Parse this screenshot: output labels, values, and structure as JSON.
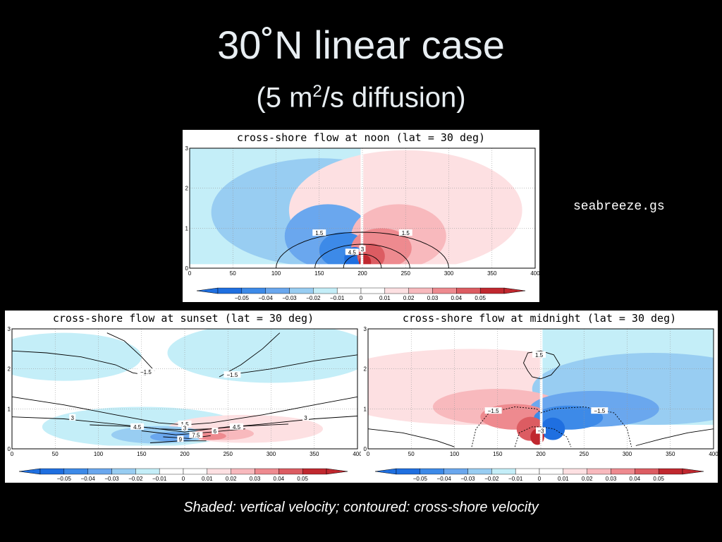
{
  "slide": {
    "title": "30˚N linear case",
    "subtitle_prefix": "(5 m",
    "subtitle_sup": "2",
    "subtitle_suffix": "/s diffusion)",
    "script_label": "seabreeze.gs",
    "caption": "Shaded: vertical velocity; contoured: cross-shore velocity"
  },
  "colors": {
    "neg5": "#1f6fe0",
    "neg4": "#3d8ae8",
    "neg3": "#6aa7ee",
    "neg2": "#98cdf2",
    "neg1": "#c4eef8",
    "zero": "#ffffff",
    "pos1": "#fde0e2",
    "pos2": "#f8b9bd",
    "pos3": "#ee8a8f",
    "pos4": "#dc5c62",
    "pos5": "#c0282f"
  },
  "chart_data": [
    {
      "type": "heatmap",
      "title": "cross-shore flow at noon (lat = 30 deg)",
      "x_ticks": [
        "0",
        "50",
        "100",
        "150",
        "200",
        "250",
        "300",
        "350",
        "400"
      ],
      "y_ticks": [
        "0",
        "1",
        "2",
        "3"
      ],
      "xlim": [
        0,
        400
      ],
      "ylim": [
        0,
        3
      ],
      "colorbar": [
        "−0.05",
        "−0.04",
        "−0.03",
        "−0.02",
        "−0.01",
        "0",
        "0.01",
        "0.02",
        "0.03",
        "0.04",
        "0.05"
      ],
      "contour_labels": [
        {
          "text": "1.5",
          "x": 150,
          "y": 0.88
        },
        {
          "text": "1.5",
          "x": 250,
          "y": 0.88
        },
        {
          "text": "3",
          "x": 200,
          "y": 0.48
        },
        {
          "text": "4.5",
          "x": 188,
          "y": 0.4
        }
      ]
    },
    {
      "type": "heatmap",
      "title": "cross-shore flow at sunset (lat = 30 deg)",
      "x_ticks": [
        "0",
        "50",
        "100",
        "150",
        "200",
        "250",
        "300",
        "350",
        "400"
      ],
      "y_ticks": [
        "0",
        "1",
        "2",
        "3"
      ],
      "xlim": [
        0,
        400
      ],
      "ylim": [
        0,
        3
      ],
      "colorbar": [
        "−0.05",
        "−0.04",
        "−0.03",
        "−0.02",
        "−0.01",
        "0",
        "0.01",
        "0.02",
        "0.03",
        "0.04",
        "0.05"
      ],
      "contour_labels": [
        {
          "text": "−1.5",
          "x": 155,
          "y": 1.92
        },
        {
          "text": "−1.5",
          "x": 255,
          "y": 1.85
        },
        {
          "text": "3",
          "x": 70,
          "y": 0.78
        },
        {
          "text": "3",
          "x": 340,
          "y": 0.78
        },
        {
          "text": "4.5",
          "x": 145,
          "y": 0.55
        },
        {
          "text": "4.5",
          "x": 260,
          "y": 0.55
        },
        {
          "text": "1.5",
          "x": 200,
          "y": 0.62
        },
        {
          "text": "3",
          "x": 200,
          "y": 0.52
        },
        {
          "text": "6",
          "x": 235,
          "y": 0.44
        },
        {
          "text": "7.5",
          "x": 213,
          "y": 0.34
        },
        {
          "text": "9",
          "x": 195,
          "y": 0.24
        }
      ]
    },
    {
      "type": "heatmap",
      "title": "cross-shore flow at midnight (lat = 30 deg)",
      "x_ticks": [
        "0",
        "50",
        "100",
        "150",
        "200",
        "250",
        "300",
        "350",
        "400"
      ],
      "y_ticks": [
        "0",
        "1",
        "2",
        "3"
      ],
      "xlim": [
        0,
        400
      ],
      "ylim": [
        0,
        3
      ],
      "colorbar": [
        "−0.05",
        "−0.04",
        "−0.03",
        "−0.02",
        "−0.01",
        "0",
        "0.01",
        "0.02",
        "0.03",
        "0.04",
        "0.05"
      ],
      "contour_labels": [
        {
          "text": "1.5",
          "x": 198,
          "y": 2.35
        },
        {
          "text": "−1.5",
          "x": 145,
          "y": 0.95
        },
        {
          "text": "−1.5",
          "x": 268,
          "y": 0.95
        },
        {
          "text": "−3",
          "x": 200,
          "y": 0.45
        }
      ]
    }
  ]
}
